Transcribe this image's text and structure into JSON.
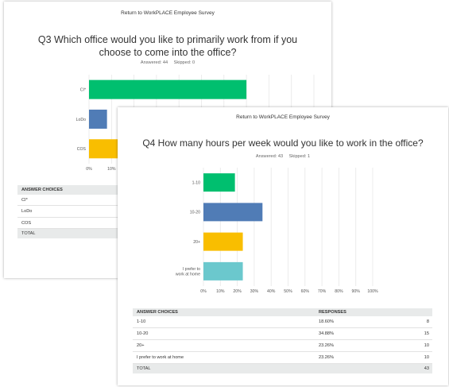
{
  "q3": {
    "survey_title": "Return to WorkPLACE Employee Survey",
    "question": "Q3 Which office would you like to primarily work from if you choose to come into the office?",
    "answered": "Answered: 44",
    "skipped": "Skipped: 0",
    "table": {
      "header": "ANSWER CHOICES",
      "rows": [
        "CI*",
        "LoDo",
        "COS"
      ],
      "total": "TOTAL"
    }
  },
  "q4": {
    "survey_title": "Return to WorkPLACE Employee Survey",
    "question": "Q4 How many hours per week would you like to work in the office?",
    "answered": "Answered: 43",
    "skipped": "Skipped: 1",
    "table": {
      "header_choices": "ANSWER CHOICES",
      "header_responses": "RESPONSES",
      "rows": [
        {
          "choice": "1-10",
          "percent": "18.60%",
          "count": "8"
        },
        {
          "choice": "10-20",
          "percent": "34.88%",
          "count": "15"
        },
        {
          "choice": "20+",
          "percent": "23.26%",
          "count": "10"
        },
        {
          "choice": "I prefer to work at home",
          "percent": "23.26%",
          "count": "10"
        }
      ],
      "total_label": "TOTAL",
      "total_count": "43"
    }
  },
  "chart_data": [
    {
      "type": "bar",
      "orientation": "horizontal",
      "categories": [
        "CI*",
        "LoDo",
        "COS"
      ],
      "values": [
        70,
        8,
        14
      ],
      "xlim": [
        0,
        100
      ],
      "xticks": [
        "0%",
        "10%"
      ],
      "colors": [
        "#00bf6f",
        "#507cb6",
        "#f9be00"
      ],
      "grid": true
    },
    {
      "type": "bar",
      "orientation": "horizontal",
      "categories": [
        "1-10",
        "10-20",
        "20+",
        "I prefer to work at home"
      ],
      "category_lines": [
        [
          "1-10"
        ],
        [
          "10-20"
        ],
        [
          "20+"
        ],
        [
          "I prefer to",
          "work at home"
        ]
      ],
      "values": [
        18.6,
        34.88,
        23.26,
        23.26
      ],
      "xlim": [
        0,
        100
      ],
      "xticks": [
        "0%",
        "10%",
        "20%",
        "30%",
        "40%",
        "50%",
        "60%",
        "70%",
        "80%",
        "90%",
        "100%"
      ],
      "colors": [
        "#00bf6f",
        "#507cb6",
        "#f9be00",
        "#6bc8cd"
      ],
      "grid": true
    }
  ]
}
